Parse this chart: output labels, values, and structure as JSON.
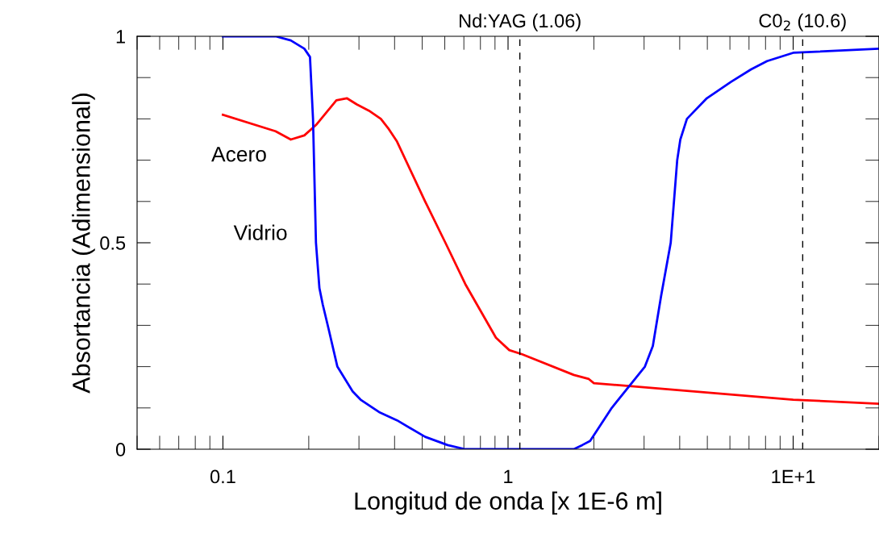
{
  "chart_data": {
    "type": "line",
    "xlabel": "Longitud de onda [x 1E-6 m]",
    "ylabel": "Absortancia (Adimensional)",
    "log": "x",
    "xlim": [
      0.05,
      20
    ],
    "ylim": [
      0,
      1
    ],
    "xticks": [
      {
        "value": 0.1,
        "label": "0.1"
      },
      {
        "value": 1,
        "label": "1"
      },
      {
        "value": 10,
        "label": "1E+1"
      }
    ],
    "yticks": [
      0,
      0.5,
      1
    ],
    "grid": false,
    "legend": false,
    "marker": "none",
    "line_style": "solid",
    "ref_lines": [
      {
        "axis": "x",
        "value": 1.1,
        "label": "Nd:YAG (1.06)",
        "color": "#000000",
        "line_style": "dashed"
      },
      {
        "axis": "x",
        "value": 10.8,
        "label": "C0$_{2}$ (10.6)",
        "color": "#000000",
        "line_style": "dashed"
      }
    ],
    "series": [
      {
        "name": "Acero",
        "color": "#ff0000",
        "x": [
          0.1,
          0.153,
          0.173,
          0.193,
          0.212,
          0.227,
          0.25,
          0.272,
          0.295,
          0.325,
          0.358,
          0.382,
          0.408,
          0.512,
          0.603,
          0.708,
          0.907,
          1.01,
          1.12,
          1.7,
          1.92,
          2.0,
          10,
          20
        ],
        "values": [
          0.81,
          0.77,
          0.75,
          0.76,
          0.785,
          0.81,
          0.845,
          0.85,
          0.835,
          0.82,
          0.8,
          0.775,
          0.745,
          0.6,
          0.5,
          0.4,
          0.27,
          0.24,
          0.23,
          0.18,
          0.17,
          0.16,
          0.12,
          0.11
        ]
      },
      {
        "name": "Vidrio",
        "color": "#0000ff",
        "x": [
          0.1,
          0.153,
          0.173,
          0.193,
          0.202,
          0.207,
          0.212,
          0.218,
          0.224,
          0.235,
          0.252,
          0.285,
          0.304,
          0.353,
          0.408,
          0.512,
          0.614,
          0.708,
          1.7,
          1.82,
          1.94,
          2.31,
          3.02,
          3.22,
          3.44,
          3.72,
          3.92,
          4.02,
          4.24,
          4.98,
          6.06,
          7.12,
          8.1,
          10,
          20
        ],
        "values": [
          1,
          1,
          0.99,
          0.97,
          0.95,
          0.8,
          0.5,
          0.39,
          0.35,
          0.29,
          0.2,
          0.14,
          0.12,
          0.09,
          0.07,
          0.03,
          0.01,
          0,
          0,
          0.01,
          0.02,
          0.1,
          0.2,
          0.25,
          0.37,
          0.5,
          0.7,
          0.75,
          0.8,
          0.85,
          0.89,
          0.92,
          0.94,
          0.96,
          0.97
        ]
      }
    ]
  }
}
